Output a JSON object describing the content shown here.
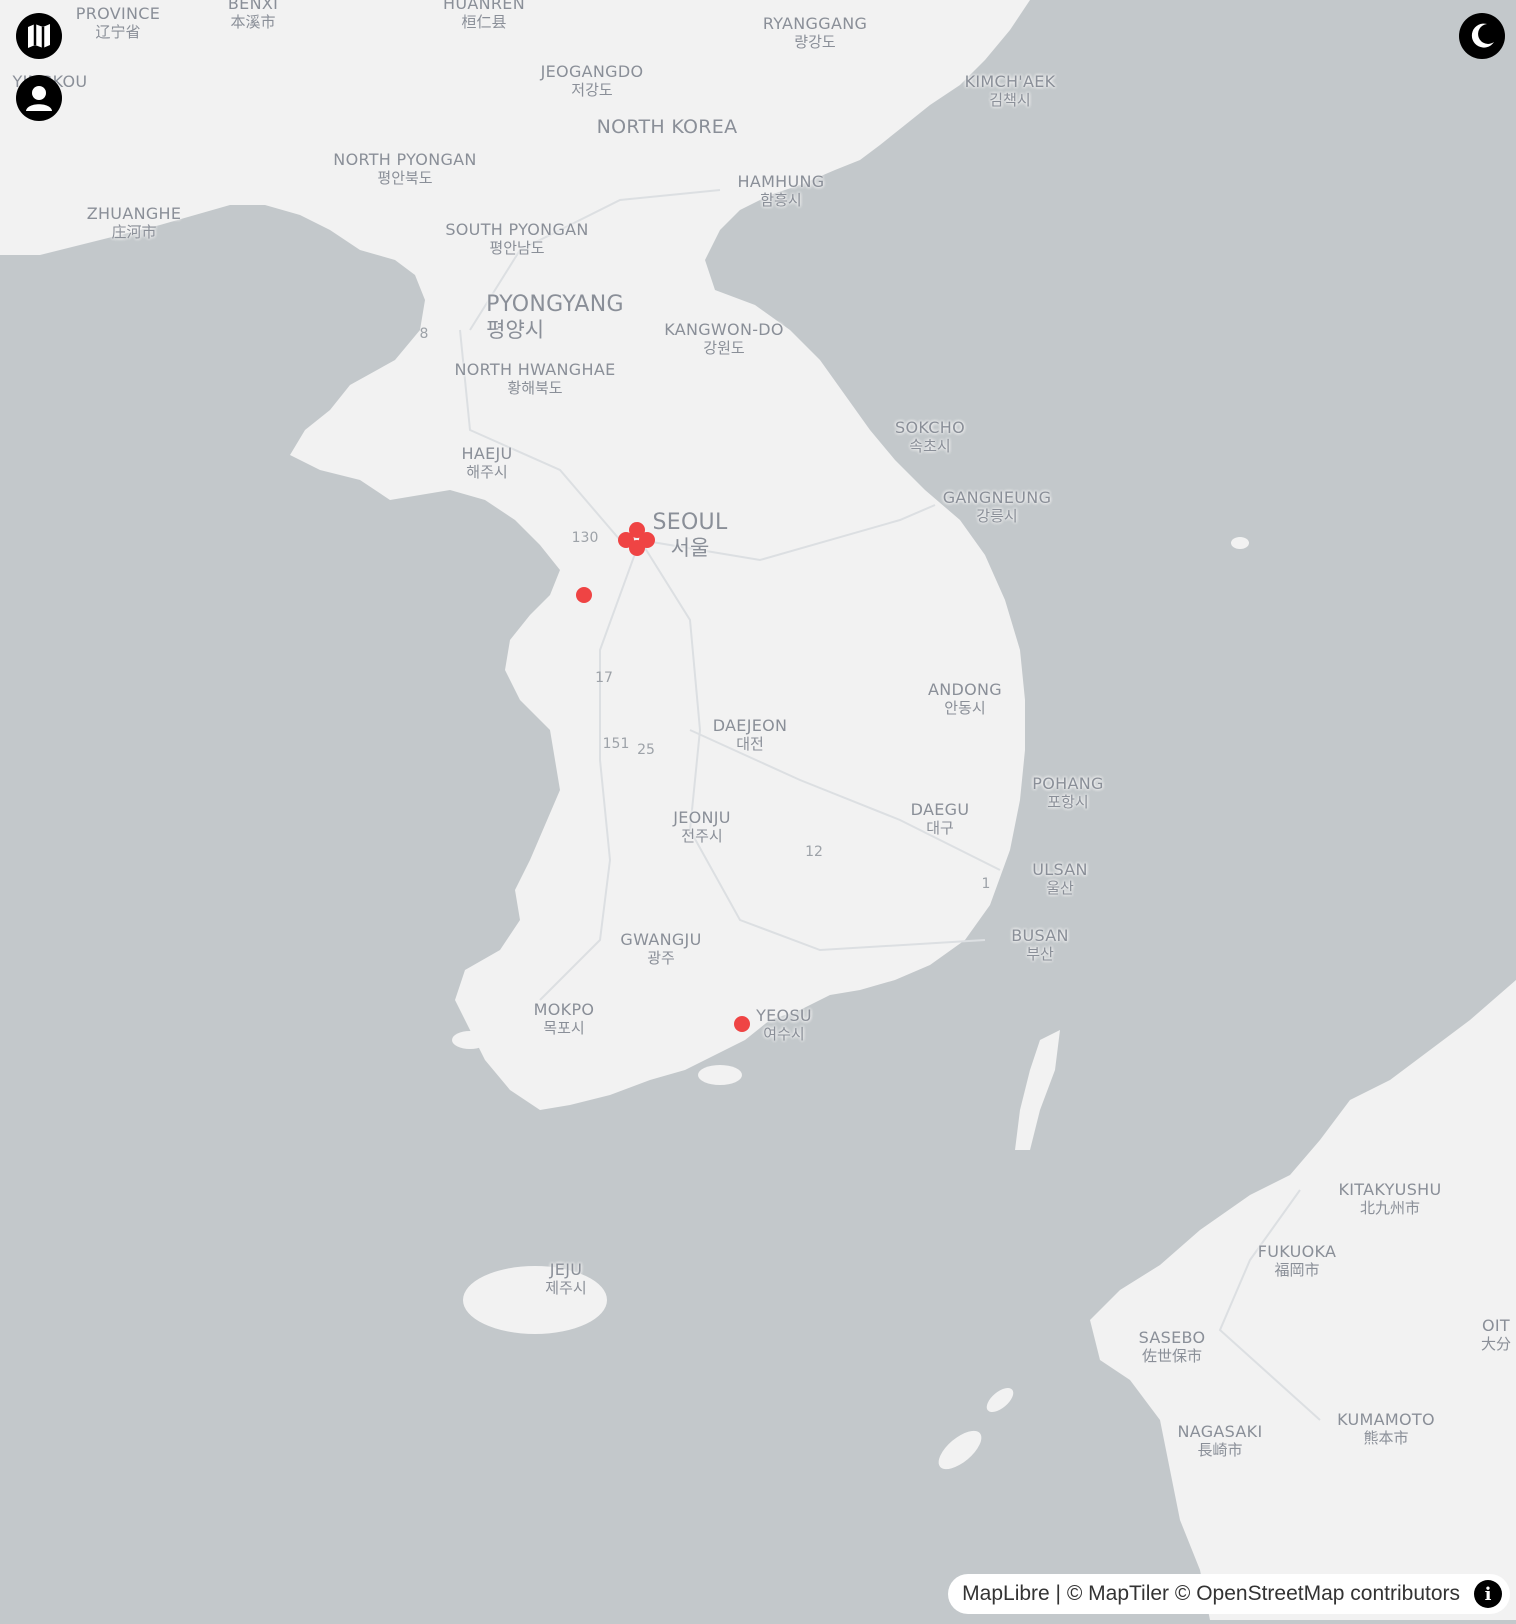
{
  "map": {
    "country_label": "NORTH KOREA",
    "cities": [
      {
        "en": "PROVINCE",
        "loc": "辽宁省"
      },
      {
        "en": "BENXI",
        "loc": "本溪市"
      },
      {
        "en": "HUANREN",
        "loc": "桓仁县"
      },
      {
        "en": "RYANGGANG",
        "loc": "량강도"
      },
      {
        "en": "JEOGANGDO",
        "loc": "저강도"
      },
      {
        "en": "KIMCH'AEK",
        "loc": "김책시"
      },
      {
        "en": "NORTH PYONGAN",
        "loc": "평안북도"
      },
      {
        "en": "HAMHUNG",
        "loc": "함흥시"
      },
      {
        "en": "ZHUANGHE",
        "loc": "庄河市"
      },
      {
        "en": "SOUTH PYONGAN",
        "loc": "평안남도"
      },
      {
        "en": "PYONGYANG",
        "loc": "평양시"
      },
      {
        "en": "KANGWON-DO",
        "loc": "강원도"
      },
      {
        "en": "NORTH HWANGHAE",
        "loc": "황해북도"
      },
      {
        "en": "SOKCHO",
        "loc": "속초시"
      },
      {
        "en": "HAEJU",
        "loc": "해주시"
      },
      {
        "en": "GANGNEUNG",
        "loc": "강릉시"
      },
      {
        "en": "SEOUL",
        "loc": "서울"
      },
      {
        "en": "ANDONG",
        "loc": "안동시"
      },
      {
        "en": "DAEJEON",
        "loc": "대전"
      },
      {
        "en": "POHANG",
        "loc": "포항시"
      },
      {
        "en": "DAEGU",
        "loc": "대구"
      },
      {
        "en": "JEONJU",
        "loc": "전주시"
      },
      {
        "en": "ULSAN",
        "loc": "울산"
      },
      {
        "en": "BUSAN",
        "loc": "부산"
      },
      {
        "en": "GWANGJU",
        "loc": "광주"
      },
      {
        "en": "MOKPO",
        "loc": "목포시"
      },
      {
        "en": "YEOSU",
        "loc": "여수시"
      },
      {
        "en": "JEJU",
        "loc": "제주시"
      },
      {
        "en": "KITAKYUSHU",
        "loc": "北九州市"
      },
      {
        "en": "FUKUOKA",
        "loc": "福岡市"
      },
      {
        "en": "SASEBO",
        "loc": "佐世保市"
      },
      {
        "en": "NAGASAKI",
        "loc": "長崎市"
      },
      {
        "en": "KUMAMOTO",
        "loc": "熊本市"
      },
      {
        "en": "OIT",
        "loc": "大分"
      },
      {
        "en": "YINGKOU",
        "loc": ""
      }
    ],
    "road_numbers": [
      "8",
      "130",
      "17",
      "151",
      "25",
      "12",
      "1"
    ],
    "marker_color": "#ef4444"
  },
  "controls": {
    "map_icon": "map-icon",
    "user_icon": "user-icon",
    "theme_icon": "moon-icon"
  },
  "attribution": {
    "text": "MapLibre | © MapTiler © OpenStreetMap contributors",
    "info_glyph": "i"
  },
  "colors": {
    "water": "#c3c8cb",
    "land": "#f2f2f2",
    "marker": "#ef4444"
  }
}
